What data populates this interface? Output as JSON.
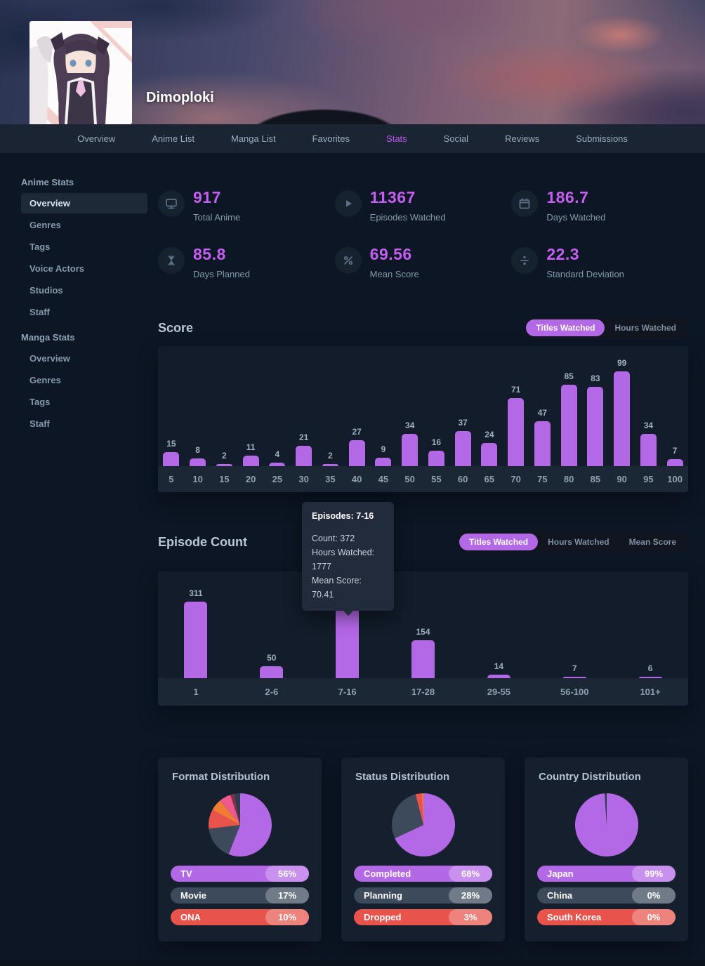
{
  "profile": {
    "username": "Dimoploki"
  },
  "nav": {
    "items": [
      {
        "label": "Overview",
        "active": false
      },
      {
        "label": "Anime List",
        "active": false
      },
      {
        "label": "Manga List",
        "active": false
      },
      {
        "label": "Favorites",
        "active": false
      },
      {
        "label": "Stats",
        "active": true
      },
      {
        "label": "Social",
        "active": false
      },
      {
        "label": "Reviews",
        "active": false
      },
      {
        "label": "Submissions",
        "active": false
      }
    ]
  },
  "sidebar": {
    "sections": [
      {
        "title": "Anime Stats",
        "items": [
          {
            "label": "Overview",
            "active": true
          },
          {
            "label": "Genres",
            "active": false
          },
          {
            "label": "Tags",
            "active": false
          },
          {
            "label": "Voice Actors",
            "active": false
          },
          {
            "label": "Studios",
            "active": false
          },
          {
            "label": "Staff",
            "active": false
          }
        ]
      },
      {
        "title": "Manga Stats",
        "items": [
          {
            "label": "Overview",
            "active": false
          },
          {
            "label": "Genres",
            "active": false
          },
          {
            "label": "Tags",
            "active": false
          },
          {
            "label": "Staff",
            "active": false
          }
        ]
      }
    ]
  },
  "summary_stats": [
    {
      "icon": "desktop-icon",
      "value": "917",
      "label": "Total Anime"
    },
    {
      "icon": "play-icon",
      "value": "11367",
      "label": "Episodes Watched"
    },
    {
      "icon": "calendar-icon",
      "value": "186.7",
      "label": "Days Watched"
    },
    {
      "icon": "hourglass-icon",
      "value": "85.8",
      "label": "Days Planned"
    },
    {
      "icon": "percent-icon",
      "value": "69.56",
      "label": "Mean Score"
    },
    {
      "icon": "divide-icon",
      "value": "22.3",
      "label": "Standard Deviation"
    }
  ],
  "score_section": {
    "title": "Score",
    "toggles": [
      {
        "label": "Titles Watched",
        "active": true
      },
      {
        "label": "Hours Watched",
        "active": false
      }
    ]
  },
  "episode_section": {
    "title": "Episode Count",
    "toggles": [
      {
        "label": "Titles Watched",
        "active": true
      },
      {
        "label": "Hours Watched",
        "active": false
      },
      {
        "label": "Mean Score",
        "active": false
      }
    ]
  },
  "tooltip": {
    "title": "Episodes: 7-16",
    "lines": [
      "Count: 372",
      "Hours Watched: 1777",
      "Mean Score: 70.41"
    ]
  },
  "chart_data": [
    {
      "id": "score",
      "type": "bar",
      "title": "Score",
      "series_label": "Titles Watched",
      "categories": [
        "5",
        "10",
        "15",
        "20",
        "25",
        "30",
        "35",
        "40",
        "45",
        "50",
        "55",
        "60",
        "65",
        "70",
        "75",
        "80",
        "85",
        "90",
        "95",
        "100"
      ],
      "values": [
        15,
        8,
        2,
        11,
        4,
        21,
        2,
        27,
        9,
        34,
        16,
        37,
        24,
        71,
        47,
        85,
        83,
        99,
        34,
        7
      ],
      "ylim": [
        0,
        99
      ],
      "bar_color": "#b368e6",
      "grid": false
    },
    {
      "id": "episode_count",
      "type": "bar",
      "title": "Episode Count",
      "series_label": "Titles Watched",
      "categories": [
        "1",
        "2-6",
        "7-16",
        "17-28",
        "29-55",
        "56-100",
        "101+"
      ],
      "values": [
        311,
        50,
        372,
        154,
        14,
        7,
        6
      ],
      "ylim": [
        0,
        372
      ],
      "bar_color": "#b368e6",
      "grid": false
    },
    {
      "id": "format_distribution",
      "type": "pie",
      "title": "Format Distribution",
      "slices": [
        {
          "label": "TV",
          "pct": 56,
          "color": "#b368e6",
          "row": true,
          "pct_text": "56%"
        },
        {
          "label": "Movie",
          "pct": 17,
          "color": "#3d4a5c",
          "row": true,
          "pct_text": "17%"
        },
        {
          "label": "ONA",
          "pct": 10,
          "color": "#e8544c",
          "row": true,
          "pct_text": "10%"
        },
        {
          "label": "",
          "pct": 6,
          "color": "#f17c34",
          "row": false,
          "pct_text": ""
        },
        {
          "label": "",
          "pct": 6,
          "color": "#ee5a8f",
          "row": false,
          "pct_text": ""
        },
        {
          "label": "",
          "pct": 2,
          "color": "#83304a",
          "row": false,
          "pct_text": ""
        },
        {
          "label": "",
          "pct": 3,
          "color": "#2e3c50",
          "row": false,
          "pct_text": ""
        }
      ]
    },
    {
      "id": "status_distribution",
      "type": "pie",
      "title": "Status Distribution",
      "slices": [
        {
          "label": "Completed",
          "pct": 68,
          "color": "#b368e6",
          "row": true,
          "pct_text": "68%"
        },
        {
          "label": "Planning",
          "pct": 28,
          "color": "#3d4a5c",
          "row": true,
          "pct_text": "28%"
        },
        {
          "label": "Dropped",
          "pct": 3,
          "color": "#e8544c",
          "row": true,
          "pct_text": "3%"
        },
        {
          "label": "",
          "pct": 1,
          "color": "#f17c34",
          "row": false,
          "pct_text": ""
        }
      ]
    },
    {
      "id": "country_distribution",
      "type": "pie",
      "title": "Country Distribution",
      "slices": [
        {
          "label": "Japan",
          "pct": 99,
          "color": "#b368e6",
          "row": true,
          "pct_text": "99%"
        },
        {
          "label": "China",
          "pct": 0,
          "color": "#3d4a5c",
          "row": true,
          "pct_text": "0%"
        },
        {
          "label": "South Korea",
          "pct": 0,
          "color": "#e8544c",
          "row": true,
          "pct_text": "0%"
        },
        {
          "label": "",
          "pct": 1,
          "color": "#2e3c50",
          "row": false,
          "pct_text": ""
        }
      ]
    }
  ],
  "colors": {
    "accent_purple": "#b368e6",
    "value_text": "#c45ff2",
    "nav_active": "#c158f2",
    "slate": "#3d4a5c",
    "red": "#e8544c",
    "orange": "#f17c34",
    "pink": "#ee5a8f",
    "maroon": "#83304a",
    "page_bg": "#0c1624",
    "card_bg": "#151f2e",
    "nav_bg": "#1a2433"
  }
}
